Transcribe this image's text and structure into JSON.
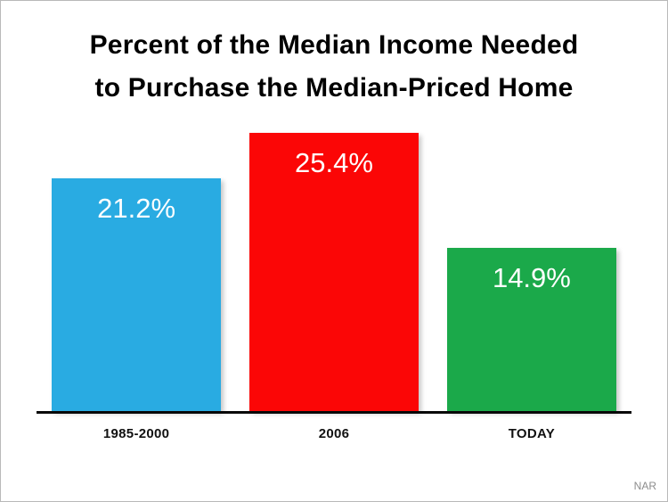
{
  "chart_data": {
    "type": "bar",
    "title": "Percent of the Median Income Needed to Purchase the Median-Priced Home",
    "title_lines": [
      "Percent of the Median Income Needed",
      "to Purchase the Median-Priced Home"
    ],
    "categories": [
      "1985-2000",
      "2006",
      "TODAY"
    ],
    "values": [
      21.2,
      25.4,
      14.9
    ],
    "value_labels": [
      "21.2%",
      "25.4%",
      "14.9%"
    ],
    "bar_colors": [
      "#29abe2",
      "#fb0606",
      "#1ba94a"
    ],
    "xlabel": "",
    "ylabel": "",
    "ylim": [
      0,
      27
    ],
    "grid": false,
    "legend": false,
    "source": "NAR"
  }
}
